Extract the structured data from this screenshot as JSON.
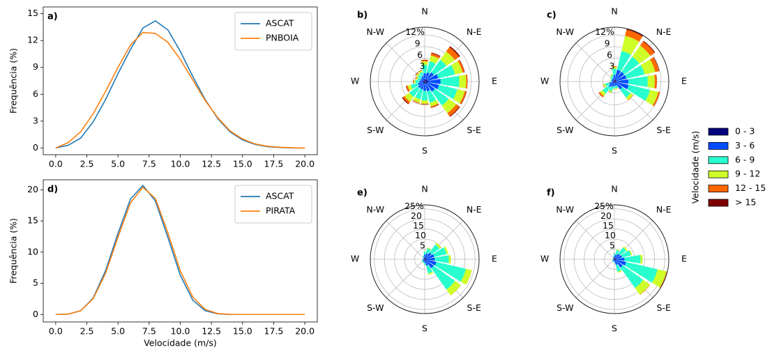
{
  "chart_data": [
    {
      "type": "line",
      "panel": "a)",
      "ylabel": "Frequência (%)",
      "x": [
        0,
        1,
        2,
        3,
        4,
        5,
        6,
        7,
        8,
        9,
        10,
        11,
        12,
        13,
        14,
        15,
        16,
        17,
        18,
        19,
        20
      ],
      "series": [
        {
          "name": "ASCAT",
          "color": "#1f77b4",
          "values": [
            0,
            0.3,
            1.1,
            2.9,
            5.4,
            8.3,
            11.0,
            13.4,
            14.2,
            13.2,
            10.8,
            8.0,
            5.4,
            3.3,
            1.8,
            0.9,
            0.4,
            0.15,
            0.05,
            0,
            0
          ]
        },
        {
          "name": "PNBOIA",
          "color": "#ff7f0e",
          "values": [
            0,
            0.6,
            1.8,
            3.8,
            6.3,
            9.0,
            11.5,
            12.9,
            12.8,
            11.8,
            9.9,
            7.6,
            5.3,
            3.4,
            1.9,
            1.0,
            0.45,
            0.2,
            0.08,
            0.02,
            0
          ]
        }
      ],
      "xlim": [
        -1,
        21
      ],
      "ylim": [
        -0.75,
        15.75
      ],
      "xticks": [
        {
          "value": 0,
          "label": "0.0"
        },
        {
          "value": 2.5,
          "label": "2.5"
        },
        {
          "value": 5,
          "label": "5.0"
        },
        {
          "value": 7.5,
          "label": "7.5"
        },
        {
          "value": 10,
          "label": "10.0"
        },
        {
          "value": 12.5,
          "label": "12.5"
        },
        {
          "value": 15,
          "label": "15.0"
        },
        {
          "value": 17.5,
          "label": "17.5"
        },
        {
          "value": 20,
          "label": "20.0"
        }
      ],
      "yticks": [
        0,
        3,
        6,
        9,
        12,
        15
      ],
      "legend": "upper right"
    },
    {
      "type": "windrose",
      "panel": "b)",
      "categories": [
        "N",
        null,
        "N-E",
        null,
        "E",
        null,
        "S-E",
        null,
        "S",
        null,
        "S-W",
        null,
        "W",
        null,
        "N-W",
        null
      ],
      "rlim": [
        0,
        14
      ],
      "rticks": [
        3,
        6,
        9,
        {
          "value": 12,
          "label": "12%"
        }
      ],
      "series": [
        {
          "values": [
            0.6,
            0.6,
            0.7,
            0.8,
            0.9,
            0.8,
            0.7,
            0.6,
            0.6,
            0.5,
            0.5,
            0.5,
            0.5,
            0.4,
            0.4,
            0.5
          ]
        },
        {
          "values": [
            1.5,
            1.8,
            2.2,
            2.8,
            3.2,
            3.0,
            2.5,
            2.0,
            1.8,
            1.6,
            1.6,
            1.3,
            0.9,
            0.7,
            0.8,
            1.0
          ]
        },
        {
          "values": [
            2.2,
            3.0,
            4.0,
            4.4,
            4.8,
            4.8,
            4.4,
            3.0,
            2.5,
            2.6,
            2.8,
            1.9,
            1.0,
            0.8,
            1.0,
            1.0
          ]
        },
        {
          "values": [
            0.9,
            1.5,
            2.6,
            2.0,
            1.8,
            2.0,
            2.4,
            1.0,
            0.8,
            0.9,
            1.5,
            0.8,
            0.4,
            0.4,
            0.5,
            0.4
          ]
        },
        {
          "values": [
            0.3,
            0.6,
            1.4,
            0.5,
            0.3,
            0.4,
            1.0,
            0.3,
            0.2,
            0.2,
            0.6,
            0.4,
            0.1,
            0.2,
            0.2,
            0.1
          ]
        },
        {
          "values": [
            0.1,
            0.2,
            0.3,
            0.1,
            0.05,
            0.1,
            0.2,
            0.1,
            0.05,
            0.05,
            0.2,
            0.1,
            0.05,
            0.05,
            0.05,
            0.05
          ]
        }
      ]
    },
    {
      "type": "windrose",
      "panel": "c)",
      "categories": [
        "N",
        null,
        "N-E",
        null,
        "E",
        null,
        "S-E",
        null,
        "S",
        null,
        "S-W",
        null,
        "W",
        null,
        "N-W",
        null
      ],
      "rlim": [
        0,
        14
      ],
      "rticks": [
        3,
        6,
        9,
        {
          "value": 12,
          "label": "12%"
        }
      ],
      "series": [
        {
          "values": [
            0.5,
            0.6,
            0.6,
            0.6,
            0.6,
            0.6,
            0.5,
            0.4,
            0.4,
            0.4,
            0.4,
            0.4,
            0.3,
            0.3,
            0.3,
            0.4
          ]
        },
        {
          "values": [
            1.2,
            2.5,
            2.5,
            2.6,
            3.0,
            3.2,
            2.0,
            0.8,
            0.8,
            1.0,
            1.4,
            1.0,
            0.4,
            0.4,
            0.5,
            0.6
          ]
        },
        {
          "values": [
            1.6,
            5.0,
            4.8,
            4.8,
            5.0,
            5.6,
            2.6,
            0.6,
            0.6,
            1.2,
            2.0,
            1.1,
            0.3,
            0.3,
            0.5,
            0.7
          ]
        },
        {
          "values": [
            0.5,
            4.0,
            3.5,
            2.8,
            1.8,
            2.2,
            0.8,
            0.2,
            0.2,
            0.3,
            0.8,
            0.4,
            0.05,
            0.05,
            0.2,
            0.3
          ]
        },
        {
          "values": [
            0.2,
            1.6,
            1.3,
            1.0,
            0.5,
            0.4,
            0.1,
            0.05,
            0.05,
            0.1,
            0.4,
            0.1,
            0,
            0,
            0,
            0.05
          ]
        },
        {
          "values": [
            0,
            0.2,
            0.2,
            0.1,
            0.05,
            0.05,
            0,
            0,
            0,
            0,
            0.05,
            0,
            0,
            0,
            0,
            0
          ]
        }
      ]
    },
    {
      "type": "line",
      "panel": "d)",
      "ylabel": "Frequência (%)",
      "xlabel": "Velocidade (m/s)",
      "x": [
        0,
        1,
        2,
        3,
        4,
        5,
        6,
        7,
        8,
        9,
        10,
        11,
        12,
        13,
        14,
        15,
        16,
        17,
        18,
        19,
        20
      ],
      "series": [
        {
          "name": "ASCAT",
          "color": "#1f77b4",
          "values": [
            0,
            0.05,
            0.6,
            2.6,
            7.0,
            13.0,
            18.5,
            20.7,
            18.2,
            12.4,
            6.3,
            2.3,
            0.6,
            0.1,
            0,
            0,
            0,
            0,
            0,
            0,
            0
          ]
        },
        {
          "name": "PIRATA",
          "color": "#ff7f0e",
          "values": [
            0,
            0.05,
            0.6,
            2.5,
            6.6,
            12.4,
            17.9,
            20.4,
            18.6,
            13.1,
            7.0,
            2.8,
            0.8,
            0.15,
            0.02,
            0,
            0,
            0,
            0,
            0,
            0
          ]
        }
      ],
      "xlim": [
        -1,
        21
      ],
      "ylim": [
        -1.2,
        21.6
      ],
      "xticks": [
        {
          "value": 0,
          "label": "0.0"
        },
        {
          "value": 2.5,
          "label": "2.5"
        },
        {
          "value": 5,
          "label": "5.0"
        },
        {
          "value": 7.5,
          "label": "7.5"
        },
        {
          "value": 10,
          "label": "10.0"
        },
        {
          "value": 12.5,
          "label": "12.5"
        },
        {
          "value": 15,
          "label": "15.0"
        },
        {
          "value": 17.5,
          "label": "17.5"
        },
        {
          "value": 20,
          "label": "20.0"
        }
      ],
      "yticks": [
        0,
        5,
        10,
        15,
        20
      ],
      "legend": "upper right"
    },
    {
      "type": "windrose",
      "panel": "e)",
      "categories": [
        "N",
        null,
        "N-E",
        null,
        "E",
        null,
        "S-E",
        null,
        "S",
        null,
        "S-W",
        null,
        "W",
        null,
        "N-W",
        null
      ],
      "rlim": [
        0,
        27
      ],
      "rticks": [
        5,
        10,
        15,
        20,
        {
          "value": 25,
          "label": "25%"
        }
      ],
      "series": [
        {
          "values": [
            0.8,
            0.8,
            0.9,
            1.0,
            1.0,
            1.0,
            1.0,
            0.8,
            0.6,
            0.5,
            0.5,
            0.4,
            0.3,
            0.3,
            0.3,
            0.5
          ]
        },
        {
          "values": [
            1.5,
            2.2,
            3.2,
            3.8,
            4.0,
            5.0,
            4.5,
            2.5,
            1.2,
            0.8,
            0.8,
            0.6,
            0.4,
            0.4,
            0.4,
            0.8
          ]
        },
        {
          "values": [
            1.5,
            2.6,
            5.0,
            6.4,
            7.0,
            15.0,
            13.0,
            4.0,
            1.0,
            0.6,
            0.6,
            0.4,
            0.3,
            0.3,
            0.3,
            0.6
          ]
        },
        {
          "values": [
            0.2,
            0.4,
            0.9,
            0.8,
            1.0,
            3.0,
            3.5,
            0.7,
            0.2,
            0.1,
            0.1,
            0.1,
            0,
            0,
            0,
            0.1
          ]
        },
        {
          "values": [
            0,
            0,
            0.05,
            0,
            0,
            0.05,
            0.1,
            0,
            0,
            0,
            0,
            0,
            0,
            0,
            0,
            0
          ]
        },
        {
          "values": [
            0,
            0,
            0,
            0,
            0,
            0,
            0,
            0,
            0,
            0,
            0,
            0,
            0,
            0,
            0,
            0
          ]
        }
      ]
    },
    {
      "type": "windrose",
      "panel": "f)",
      "categories": [
        "N",
        null,
        "N-E",
        null,
        "E",
        null,
        "S-E",
        null,
        "S",
        null,
        "S-W",
        null,
        "W",
        null,
        "N-W",
        null
      ],
      "rlim": [
        0,
        27
      ],
      "rticks": [
        5,
        10,
        15,
        20,
        {
          "value": 25,
          "label": "25%"
        }
      ],
      "series": [
        {
          "values": [
            0.6,
            0.7,
            0.8,
            0.9,
            1.0,
            1.0,
            0.9,
            0.7,
            0.5,
            0.4,
            0.4,
            0.4,
            0.3,
            0.3,
            0.3,
            0.4
          ]
        },
        {
          "values": [
            1.2,
            1.8,
            2.6,
            3.0,
            4.0,
            5.0,
            4.2,
            2.2,
            0.8,
            0.6,
            0.6,
            0.4,
            0.3,
            0.3,
            0.3,
            0.6
          ]
        },
        {
          "values": [
            1.0,
            2.2,
            3.8,
            4.5,
            8.0,
            16.0,
            12.5,
            3.5,
            0.6,
            0.4,
            0.4,
            0.3,
            0.2,
            0.2,
            0.2,
            0.4
          ]
        },
        {
          "values": [
            0.1,
            0.4,
            0.8,
            0.6,
            1.0,
            4.5,
            4.0,
            0.6,
            0.1,
            0.05,
            0.05,
            0,
            0,
            0,
            0,
            0.05
          ]
        },
        {
          "values": [
            0,
            0,
            0,
            0,
            0,
            0.3,
            0.2,
            0,
            0,
            0,
            0,
            0,
            0,
            0,
            0,
            0
          ]
        },
        {
          "values": [
            0,
            0,
            0,
            0,
            0,
            0,
            0,
            0,
            0,
            0,
            0,
            0,
            0,
            0,
            0,
            0
          ]
        }
      ]
    }
  ],
  "speed_legend": {
    "title": "Velocidade (m/s)",
    "items": [
      {
        "name": "0 - 3",
        "color": "#00007f"
      },
      {
        "name": "3 - 6",
        "color": "#004cff"
      },
      {
        "name": "6 - 9",
        "color": "#29ffce"
      },
      {
        "name": "9 - 12",
        "color": "#ceff29"
      },
      {
        "name": "12 - 15",
        "color": "#ff6800"
      },
      {
        "name": "> 15",
        "color": "#7f0000"
      }
    ]
  }
}
